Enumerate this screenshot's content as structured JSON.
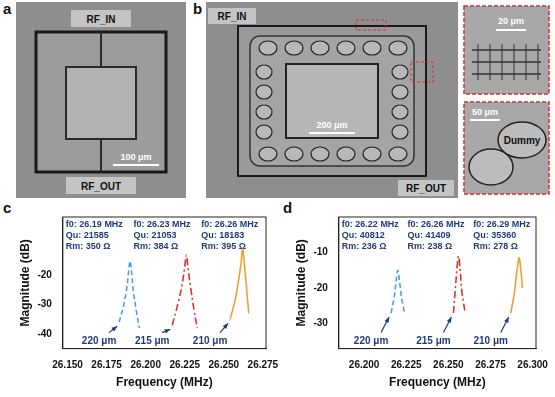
{
  "images": [
    {
      "letter": "a",
      "texts": [
        "RF_IN",
        "RF_OUT"
      ],
      "scale_bar": "100 μm"
    },
    {
      "letter": "b",
      "texts": [
        "RF_IN",
        "RF_OUT"
      ],
      "scale_bar": "200 μm",
      "insets": [
        {
          "scale_bar": "20 μm"
        },
        {
          "scale_bar": "50 μm",
          "label": "Dummy"
        }
      ]
    }
  ],
  "chart_data": [
    {
      "panel": "c",
      "type": "line",
      "x_label": "Frequency (MHz)",
      "y_label": "Magnitude (dB)",
      "xlim": [
        26.147,
        26.277
      ],
      "xticks": [
        {
          "value": 26.15,
          "label": "26.150"
        },
        26.175,
        {
          "value": 26.2,
          "label": "26.200"
        },
        26.225,
        {
          "value": 26.25,
          "label": "26.250"
        },
        26.275
      ],
      "ylim": [
        -45,
        0
      ],
      "yticks": [
        -40,
        -30,
        -20
      ],
      "grid": false,
      "series": [
        {
          "name": "220 μm",
          "color": "#4a9fe0",
          "line_style": "dashed",
          "x": [
            26.183,
            26.186,
            26.188,
            26.189,
            26.19,
            26.191,
            26.192,
            26.194,
            26.196
          ],
          "values": [
            -36,
            -30,
            -24,
            -19,
            -15,
            -19,
            -25,
            -32,
            -38
          ],
          "notes": [
            "f0: 26.19 MHz",
            "Qu: 21585",
            "Rm: 350 Ω"
          ]
        },
        {
          "name": "215 μm",
          "color": "#e0302a",
          "line_style": "dashdot",
          "x": [
            26.217,
            26.22,
            26.223,
            26.225,
            26.226,
            26.227,
            26.229,
            26.231,
            26.233
          ],
          "values": [
            -37,
            -31,
            -24,
            -17,
            -13,
            -17,
            -25,
            -32,
            -38
          ],
          "notes": [
            "f0: 26.23 MHz",
            "Qu: 21053",
            "Rm: 384 Ω"
          ]
        },
        {
          "name": "210 μm",
          "color": "#f0a030",
          "line_style": "solid",
          "x": [
            26.254,
            26.257,
            26.259,
            26.261,
            26.262,
            26.263,
            26.264,
            26.265,
            26.266
          ],
          "values": [
            -35,
            -29,
            -23,
            -16,
            -11,
            -15,
            -21,
            -27,
            -33
          ],
          "notes": [
            "f0: 26.26 MHz",
            "Qu: 18183",
            "Rm: 395 Ω"
          ]
        }
      ]
    },
    {
      "panel": "d",
      "type": "line",
      "x_label": "Frequency (MHz)",
      "y_label": "Magnitude (dB)",
      "xlim": [
        26.185,
        26.302
      ],
      "xticks": [
        {
          "value": 26.2,
          "label": "26.200"
        },
        26.225,
        {
          "value": 26.25,
          "label": "26.250"
        },
        26.275,
        {
          "value": 26.3,
          "label": "26.300"
        }
      ],
      "ylim": [
        -37,
        0
      ],
      "yticks": [
        -30,
        -20,
        -10
      ],
      "grid": false,
      "series": [
        {
          "name": "220 μm",
          "color": "#4a9fe0",
          "line_style": "dashed",
          "x": [
            26.216,
            26.218,
            26.219,
            26.22,
            26.221,
            26.222,
            26.224
          ],
          "values": [
            -27,
            -22,
            -18,
            -15,
            -18,
            -22,
            -27
          ],
          "notes": [
            "f0: 26.22 MHz",
            "Qu: 40812",
            "Rm: 236 Ω"
          ]
        },
        {
          "name": "215 μm",
          "color": "#e0302a",
          "line_style": "dashdot",
          "x": [
            26.253,
            26.254,
            26.255,
            26.256,
            26.257,
            26.258,
            26.26
          ],
          "values": [
            -27,
            -21,
            -15,
            -11,
            -15,
            -21,
            -27
          ],
          "notes": [
            "f0: 26.26 MHz",
            "Qu: 41409",
            "Rm: 238 Ω"
          ]
        },
        {
          "name": "210 μm",
          "color": "#f0a030",
          "line_style": "solid",
          "x": [
            26.287,
            26.289,
            26.29,
            26.291,
            26.292,
            26.293,
            26.294
          ],
          "values": [
            -27,
            -22,
            -18,
            -14,
            -11.5,
            -15,
            -20
          ],
          "notes": [
            "f0: 26.29 MHz",
            "Qu: 35360",
            "Rm: 278 Ω"
          ]
        }
      ]
    }
  ]
}
